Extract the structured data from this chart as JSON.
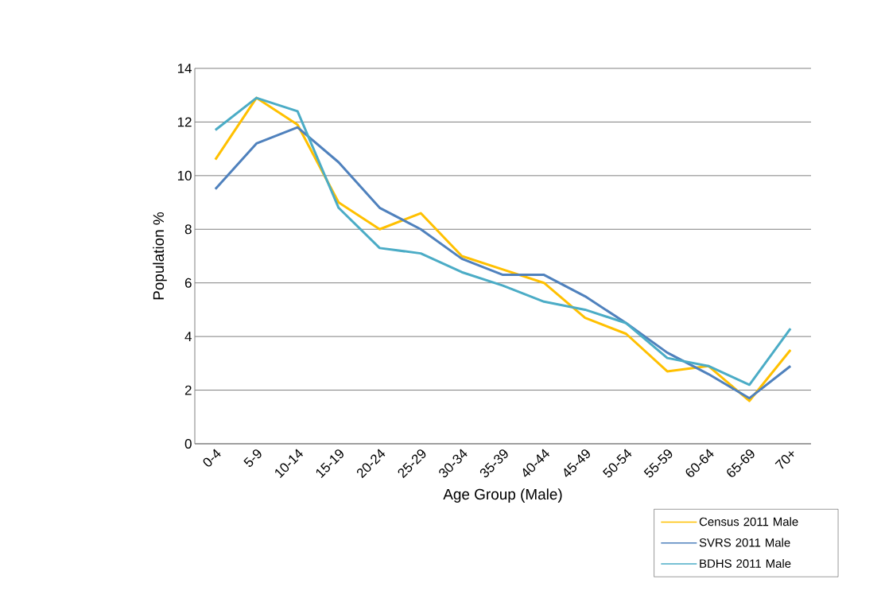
{
  "chart_data": {
    "type": "line",
    "xlabel": "Age Group (Male)",
    "ylabel": "Population %",
    "categories": [
      "0-4",
      "5-9",
      "10-14",
      "15-19",
      "20-24",
      "25-29",
      "30-34",
      "35-39",
      "40-44",
      "45-49",
      "50-54",
      "55-59",
      "60-64",
      "65-69",
      "70+"
    ],
    "series": [
      {
        "name": "Census  2011 Male",
        "color": "#ffc000",
        "values": [
          10.6,
          12.9,
          11.9,
          9.0,
          8.0,
          8.6,
          7.0,
          6.5,
          6.0,
          4.7,
          4.1,
          2.7,
          2.9,
          1.6,
          3.5
        ]
      },
      {
        "name": "SVRS 2011 Male",
        "color": "#4f81bd",
        "values": [
          9.5,
          11.2,
          11.8,
          10.5,
          8.8,
          8.0,
          6.9,
          6.3,
          6.3,
          5.5,
          4.5,
          3.4,
          2.6,
          1.7,
          2.9
        ]
      },
      {
        "name": "BDHS 2011 Male",
        "color": "#4bacc6",
        "values": [
          11.7,
          12.9,
          12.4,
          8.8,
          7.3,
          7.1,
          6.4,
          5.9,
          5.3,
          5.0,
          4.5,
          3.2,
          2.9,
          2.2,
          4.3
        ]
      }
    ],
    "ylim": [
      0,
      14
    ],
    "yticks": [
      0,
      2,
      4,
      6,
      8,
      10,
      12,
      14
    ],
    "grid": "y",
    "legend": "bottom right",
    "marker": "none",
    "line_style": "solid"
  }
}
